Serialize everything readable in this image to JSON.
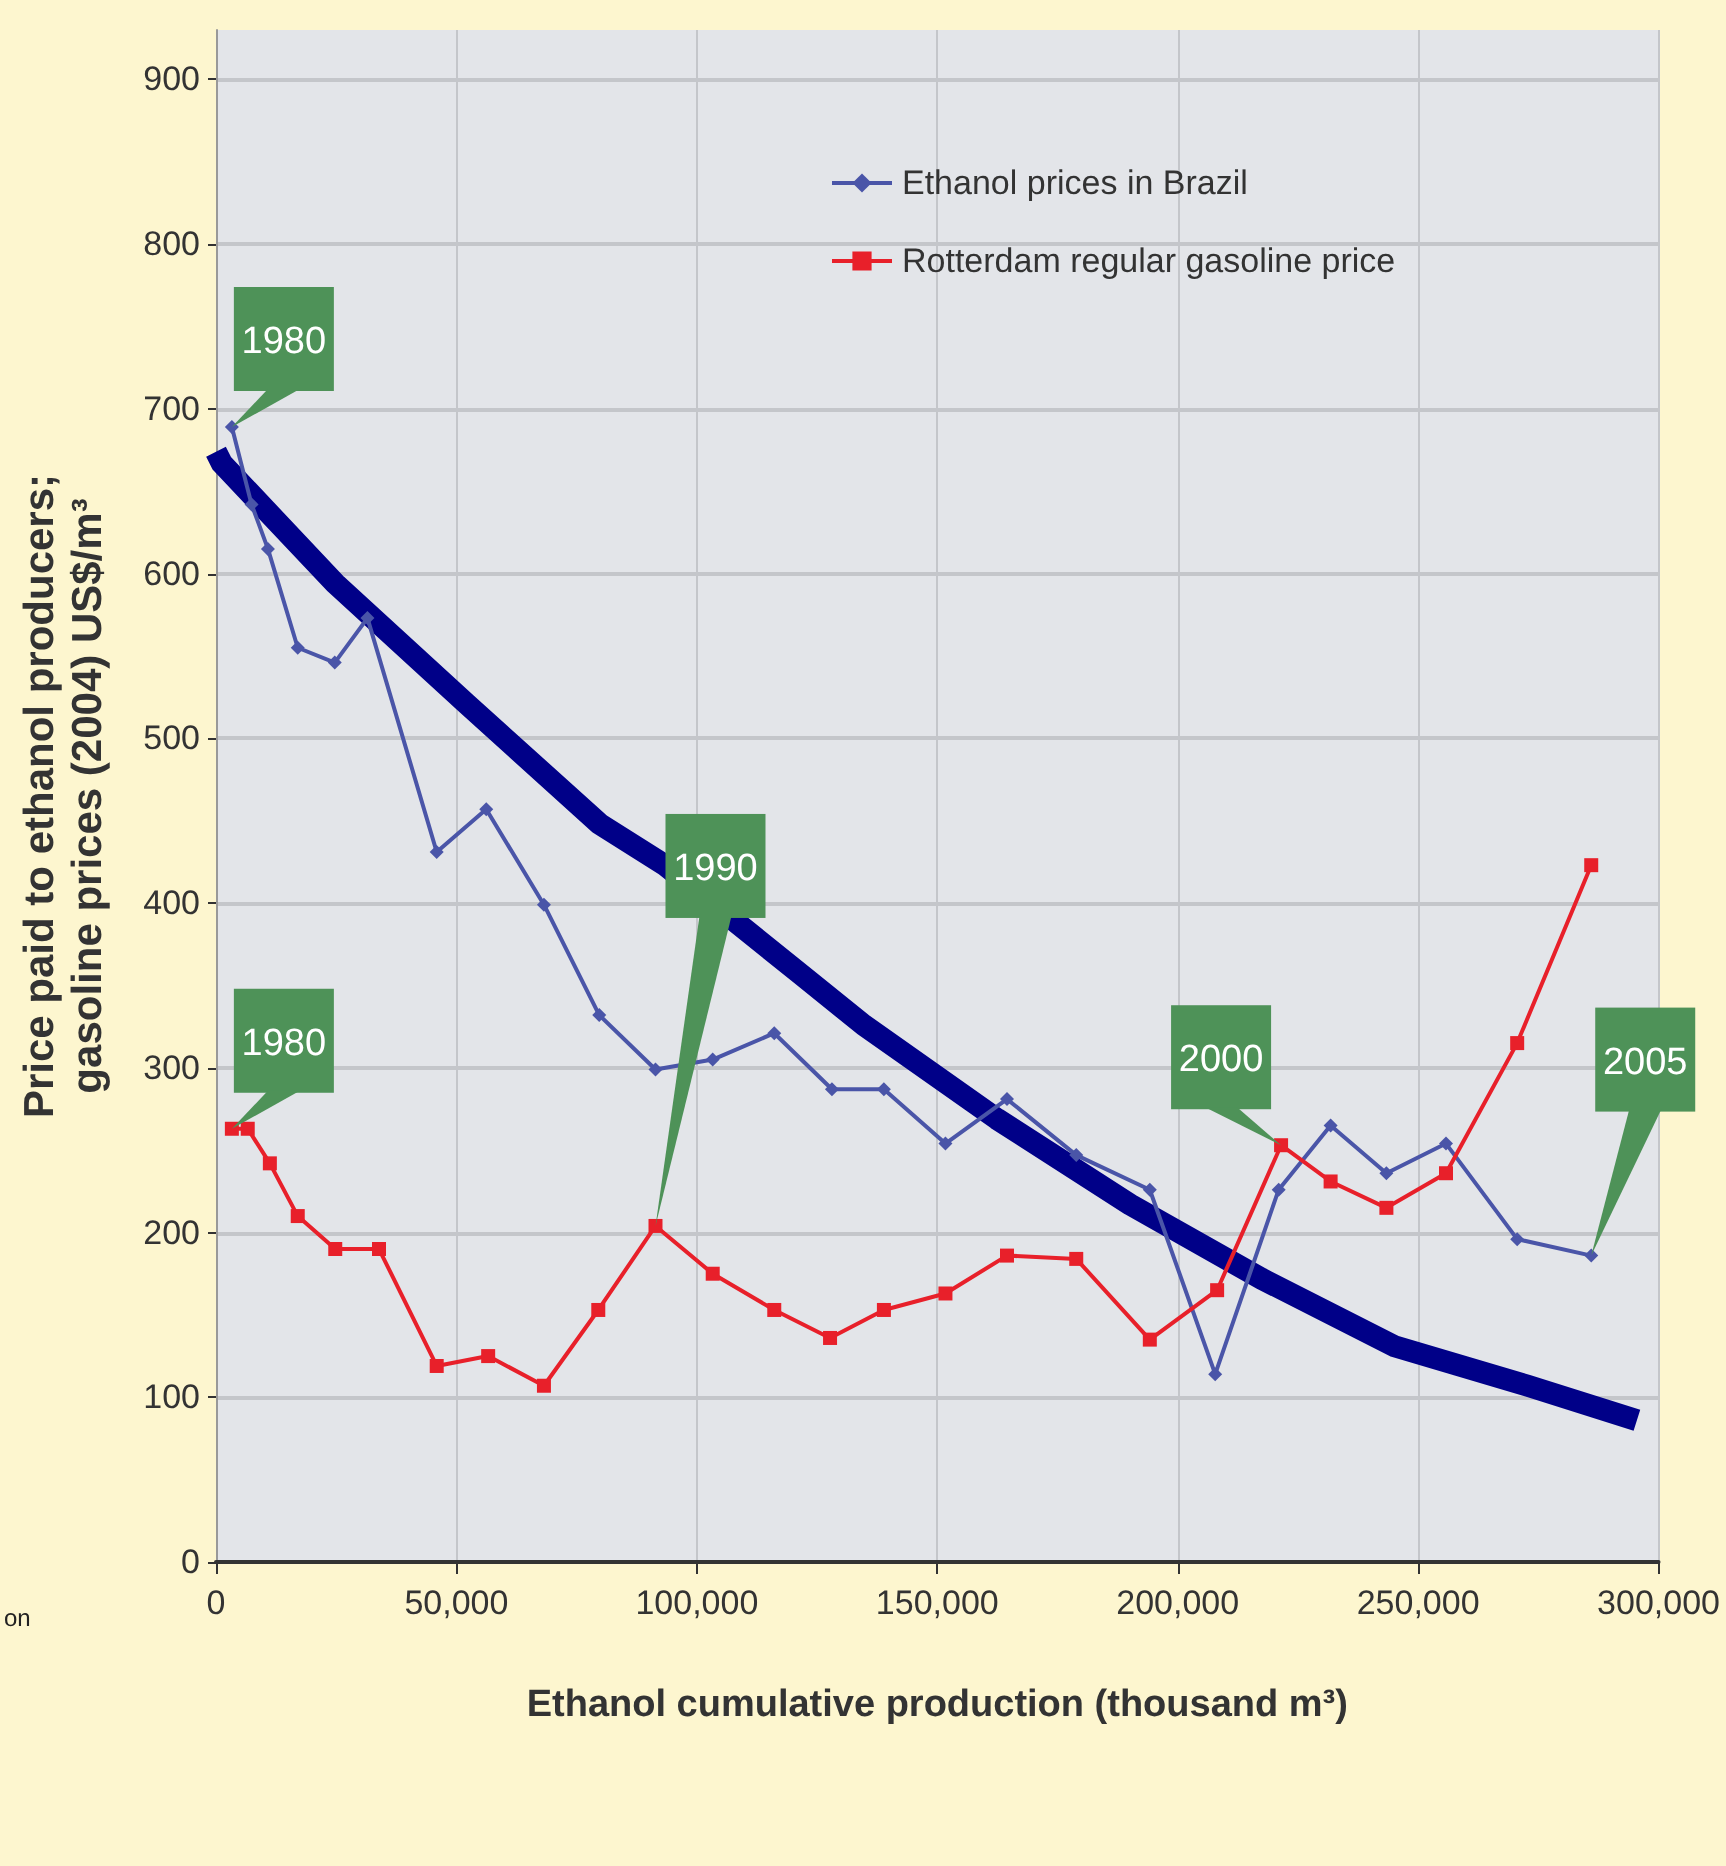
{
  "chart_data": {
    "type": "line",
    "xlabel": "Ethanol cumulative production (thousand m³)",
    "ylabel": "Price paid to ethanol producers;\ngasoline prices (2004) US$/m³",
    "xlim": [
      0,
      300000
    ],
    "xticks": [
      0,
      {
        "value": 50000,
        "label": "50,000"
      },
      {
        "value": 100000,
        "label": "100,000"
      },
      {
        "value": 150000,
        "label": "150,000"
      },
      {
        "value": 200000,
        "label": "200,000"
      },
      {
        "value": 250000,
        "label": "250,000"
      },
      {
        "value": 300000,
        "label": "300,000"
      }
    ],
    "ylim": [
      0,
      930
    ],
    "yticks": [
      0,
      100,
      200,
      300,
      400,
      500,
      600,
      700,
      800,
      900
    ],
    "grid": true,
    "legend": "top right",
    "series": [
      {
        "name": "Ethanol prices in Brazil",
        "color": "#4a55a8",
        "marker": "diamond",
        "x": [
          3300,
          7400,
          10800,
          17000,
          24700,
          31500,
          45900,
          56200,
          68200,
          79700,
          91400,
          103300,
          116100,
          128100,
          138900,
          151700,
          164500,
          178900,
          194200,
          207800,
          221000,
          231800,
          243400,
          255800,
          270600,
          286000
        ],
        "values": [
          689,
          642,
          615,
          555,
          546,
          573,
          431,
          457,
          399,
          332,
          299,
          305,
          321,
          287,
          287,
          254,
          281,
          247,
          226,
          114,
          226,
          265,
          236,
          254,
          196,
          186
        ]
      },
      {
        "name": "Rotterdam regular gasoline price",
        "color": "#e8202a",
        "marker": "square",
        "x": [
          3300,
          6600,
          11200,
          17000,
          24800,
          33900,
          45900,
          56600,
          68200,
          79500,
          91400,
          103300,
          116100,
          127700,
          138900,
          151700,
          164500,
          178900,
          194200,
          208200,
          221500,
          231800,
          243400,
          255800,
          270600,
          286000
        ],
        "values": [
          263,
          263,
          242,
          210,
          190,
          190,
          119,
          125,
          107,
          153,
          204,
          175,
          153,
          136,
          153,
          163,
          186,
          184,
          135,
          165,
          253,
          231,
          215,
          236,
          315,
          423
        ]
      },
      {
        "color": "#000088",
        "marker": "none",
        "x": [
          0,
          1200,
          24800,
          52100,
          79800,
          93400,
          121100,
          134700,
          162400,
          190100,
          217400,
          245100,
          272800,
          295500
        ],
        "values": [
          674,
          667,
          594,
          521,
          448,
          423,
          358,
          326,
          269,
          217,
          172,
          131,
          107,
          86
        ]
      }
    ],
    "annotations": [
      {
        "text": "1980",
        "x": 3300,
        "y": 689
      },
      {
        "text": "1980",
        "x": 3300,
        "y": 263
      },
      {
        "text": "1990",
        "x": 91400,
        "y": 204
      },
      {
        "text": "2000",
        "x": 221500,
        "y": 253
      },
      {
        "text": "2005",
        "x": 286000,
        "y": 186
      },
      "on"
    ]
  }
}
